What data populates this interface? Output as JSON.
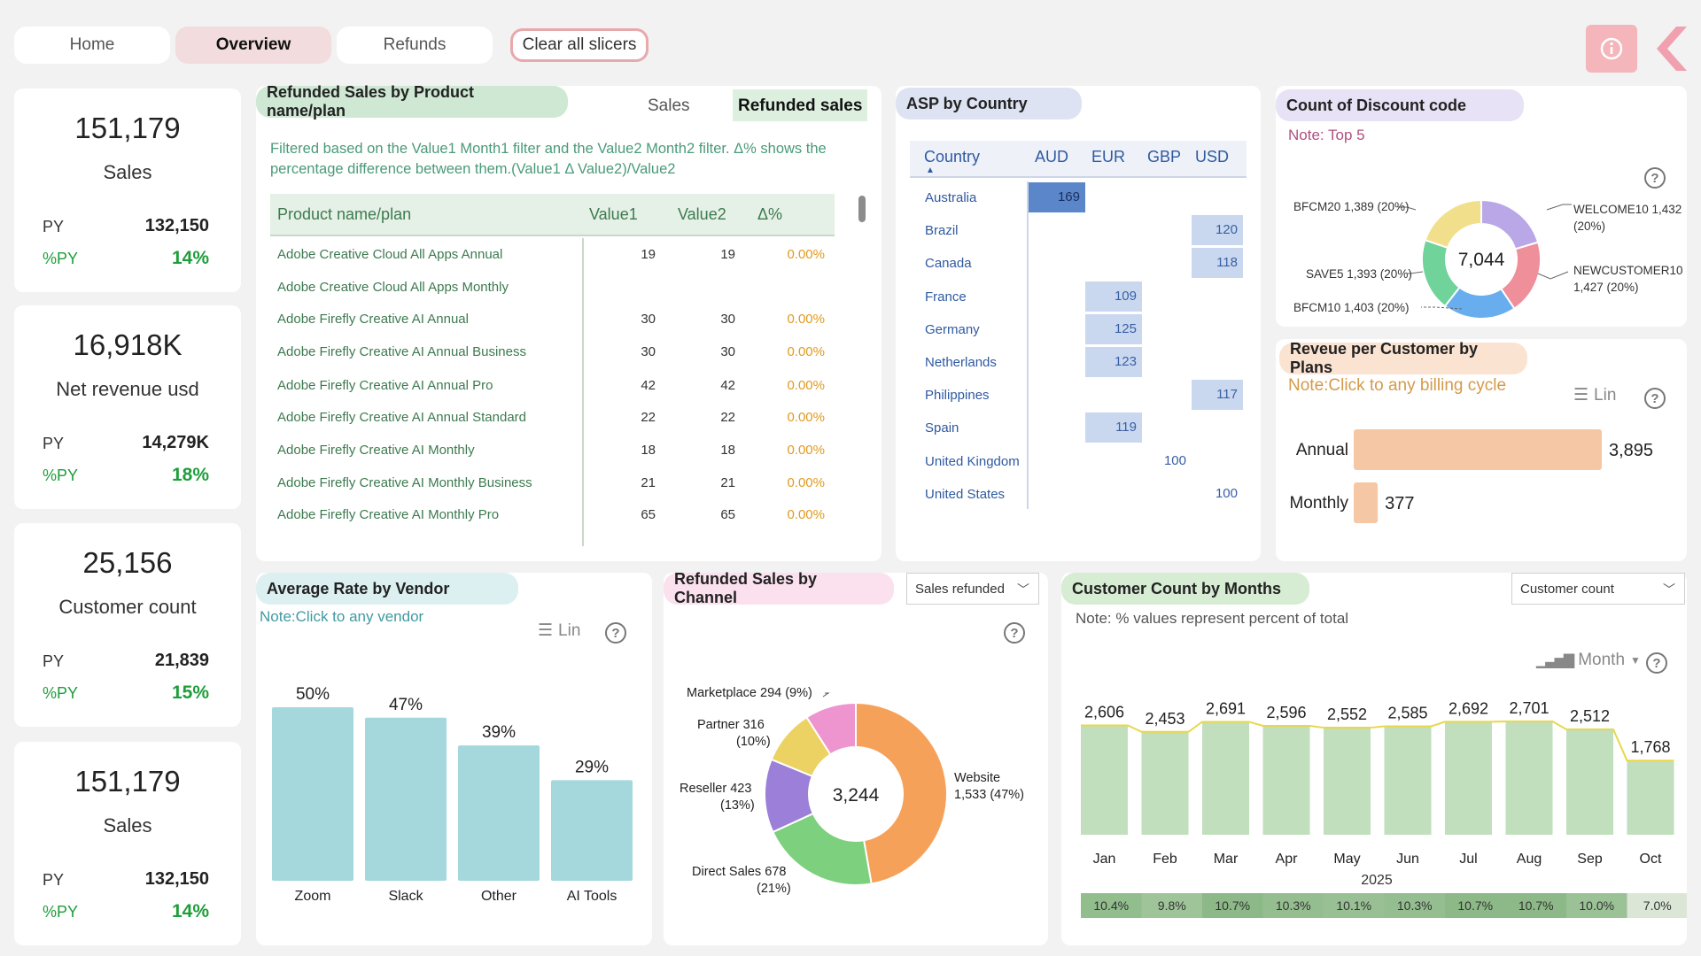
{
  "nav": {
    "home": "Home",
    "overview": "Overview",
    "refunds": "Refunds",
    "clear": "Clear all slicers"
  },
  "kpis": [
    {
      "value": "151,179",
      "label": "Sales",
      "py_label": "PY",
      "py": "132,150",
      "pct_label": "%PY",
      "pct": "14%"
    },
    {
      "value": "16,918K",
      "label": "Net revenue usd",
      "py_label": "PY",
      "py": "14,279K",
      "pct_label": "%PY",
      "pct": "18%"
    },
    {
      "value": "25,156",
      "label": "Customer count",
      "py_label": "PY",
      "py": "21,839",
      "pct_label": "%PY",
      "pct": "15%"
    },
    {
      "value": "151,179",
      "label": "Sales",
      "py_label": "PY",
      "py": "132,150",
      "pct_label": "%PY",
      "pct": "14%"
    }
  ],
  "refunded_table": {
    "title": "Refunded Sales by Product name/plan",
    "tab_sales": "Sales",
    "tab_refunded": "Refunded sales",
    "note": "Filtered based on the Value1 Month1 filter and the Value2 Month2 filter. Δ% shows the percentage difference between them.(Value1 Δ Value2)/Value2",
    "headers": [
      "Product name/plan",
      "Value1",
      "Value2",
      "Δ%"
    ],
    "rows": [
      [
        "Adobe Creative Cloud All Apps Annual",
        "19",
        "19",
        "0.00%"
      ],
      [
        "Adobe Creative Cloud All Apps Monthly",
        "",
        "",
        ""
      ],
      [
        "Adobe Firefly Creative AI Annual",
        "30",
        "30",
        "0.00%"
      ],
      [
        "Adobe Firefly Creative AI Annual Business",
        "30",
        "30",
        "0.00%"
      ],
      [
        "Adobe Firefly Creative AI Annual Pro",
        "42",
        "42",
        "0.00%"
      ],
      [
        "Adobe Firefly Creative AI Annual Standard",
        "22",
        "22",
        "0.00%"
      ],
      [
        "Adobe Firefly Creative AI Monthly",
        "18",
        "18",
        "0.00%"
      ],
      [
        "Adobe Firefly Creative AI Monthly Business",
        "21",
        "21",
        "0.00%"
      ],
      [
        "Adobe Firefly Creative AI Monthly Pro",
        "65",
        "65",
        "0.00%"
      ]
    ]
  },
  "asp": {
    "title": "ASP by Country",
    "header_country": "Country",
    "currencies": [
      "AUD",
      "EUR",
      "GBP",
      "USD"
    ],
    "rows": [
      {
        "country": "Australia",
        "col": 0,
        "value": 169
      },
      {
        "country": "Brazil",
        "col": 3,
        "value": 120
      },
      {
        "country": "Canada",
        "col": 3,
        "value": 118
      },
      {
        "country": "France",
        "col": 1,
        "value": 109
      },
      {
        "country": "Germany",
        "col": 1,
        "value": 125
      },
      {
        "country": "Netherlands",
        "col": 1,
        "value": 123
      },
      {
        "country": "Philippines",
        "col": 3,
        "value": 117
      },
      {
        "country": "Spain",
        "col": 1,
        "value": 119
      },
      {
        "country": "United Kingdom",
        "col": 2,
        "value": 100
      },
      {
        "country": "United States",
        "col": 3,
        "value": 100
      }
    ]
  },
  "discount": {
    "title": "Count of Discount code",
    "note": "Note: Top 5",
    "center": "7,044",
    "labels": [
      "WELCOME10 1,432",
      "(20%)",
      "NEWCUSTOMER10",
      "1,427 (20%)",
      "BFCM10 1,403 (20%)",
      "SAVE5 1,393 (20%)",
      "BFCM20 1,389 (20%)"
    ],
    "colors": [
      "#b9a7e8",
      "#ee8f9a",
      "#68aeee",
      "#6fd39a",
      "#f2df8c"
    ]
  },
  "plans": {
    "title": "Reveue per Customer by Plans",
    "note": "Note:Click to any billing cycle",
    "lin": "Lin",
    "color": "#f6c7a5"
  },
  "vendor": {
    "title": "Average Rate by Vendor",
    "note": "Note:Click to any vendor",
    "lin": "Lin",
    "color": "#a4d8dc"
  },
  "channel": {
    "title": "Refunded Sales by Channel",
    "dropdown": "Sales refunded",
    "center": "3,244",
    "labels": [
      "Marketplace 294 (9%)",
      "Partner 316",
      "(10%)",
      "Reseller 423",
      "(13%)",
      "Direct Sales 678",
      "(21%)",
      "Website",
      "1,533 (47%)"
    ]
  },
  "months": {
    "title": "Customer Count by Months",
    "note": "Note: % values represent percent of total",
    "dropdown": "Customer count",
    "drill": "Month",
    "year": "2025",
    "percents": [
      "10.4%",
      "9.8%",
      "10.7%",
      "10.3%",
      "10.1%",
      "10.3%",
      "10.7%",
      "10.7%",
      "10.0%",
      "7.0%"
    ],
    "color": "#c2dfbd"
  },
  "chart_data": [
    {
      "type": "pie",
      "title": "Count of Discount code",
      "categories": [
        "WELCOME10",
        "NEWCUSTOMER10",
        "BFCM10",
        "SAVE5",
        "BFCM20"
      ],
      "values": [
        1432,
        1427,
        1403,
        1393,
        1389
      ],
      "total": 7044
    },
    {
      "type": "bar",
      "title": "Reveue per Customer by Plans",
      "categories": [
        "Annual",
        "Monthly"
      ],
      "values": [
        3895,
        377
      ],
      "orientation": "horizontal"
    },
    {
      "type": "bar",
      "title": "Average Rate by Vendor",
      "categories": [
        "Zoom",
        "Slack",
        "Other",
        "AI Tools"
      ],
      "values": [
        50,
        47,
        39,
        29
      ],
      "unit": "%"
    },
    {
      "type": "pie",
      "title": "Refunded Sales by Channel",
      "categories": [
        "Website",
        "Direct Sales",
        "Reseller",
        "Partner",
        "Marketplace"
      ],
      "values": [
        1533,
        678,
        423,
        316,
        294
      ],
      "colors": [
        "#f6a15a",
        "#7dd07d",
        "#9b7fd8",
        "#ecd262",
        "#ee94cf"
      ],
      "total": 3244
    },
    {
      "type": "bar",
      "title": "Customer Count by Months",
      "categories": [
        "Jan",
        "Feb",
        "Mar",
        "Apr",
        "May",
        "Jun",
        "Jul",
        "Aug",
        "Sep",
        "Oct"
      ],
      "values": [
        2606,
        2453,
        2691,
        2596,
        2552,
        2585,
        2692,
        2701,
        2512,
        1768
      ],
      "labels": [
        "2,606",
        "2,453",
        "2,691",
        "2,596",
        "2,552",
        "2,585",
        "2,692",
        "2,701",
        "2,512",
        "1,768"
      ],
      "xlabel": "2025"
    }
  ]
}
